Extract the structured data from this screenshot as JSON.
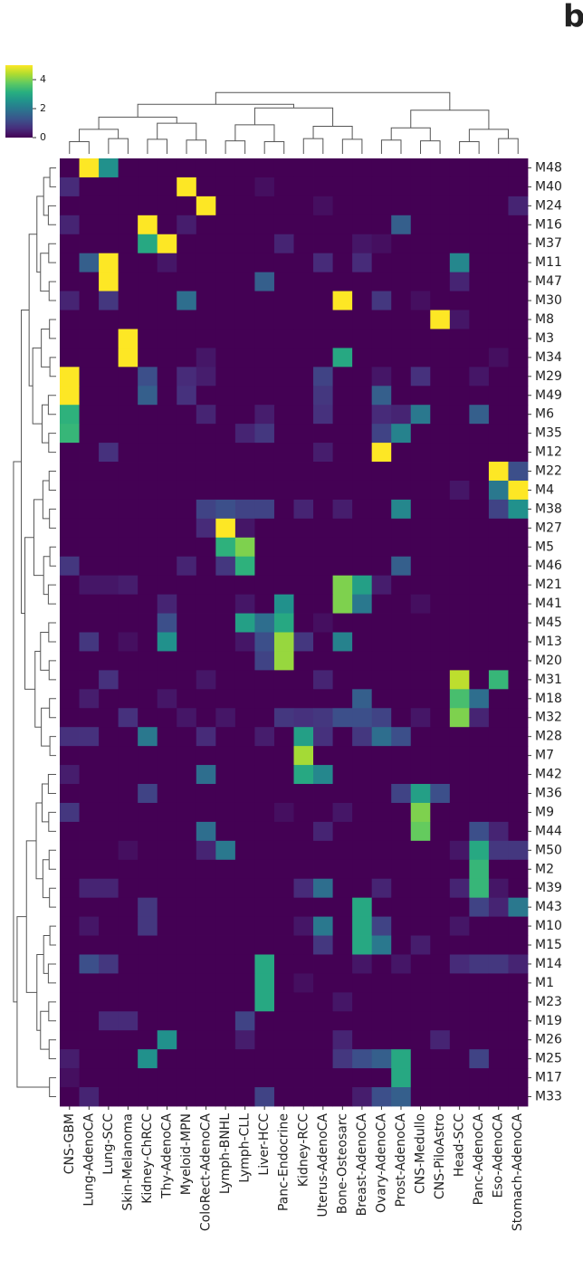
{
  "chart_data": {
    "type": "heatmap",
    "panel_label": "b",
    "colormap": "viridis",
    "clim": [
      0,
      5
    ],
    "cticks": [
      0,
      2,
      4
    ],
    "columns": [
      "CNS-GBM",
      "Lung-AdenoCA",
      "Lung-SCC",
      "Skin-Melanoma",
      "Kidney-ChRCC",
      "Thy-AdenoCA",
      "Myeloid-MPN",
      "ColoRect-AdenoCA",
      "Lymph-BNHL",
      "Lymph-CLL",
      "Liver-HCC",
      "Panc-Endocrine",
      "Kidney-RCC",
      "Uterus-AdenoCA",
      "Bone-Osteosarc",
      "Breast-AdenoCA",
      "Ovary-AdenoCA",
      "Prost-AdenoCA",
      "CNS-Medullo",
      "CNS-PiloAstro",
      "Head-SCC",
      "Panc-AdenoCA",
      "Eso-AdenoCA",
      "Stomach-AdenoCA"
    ],
    "rows": [
      "M48",
      "M40",
      "M24",
      "M16",
      "M37",
      "M11",
      "M47",
      "M30",
      "M8",
      "M3",
      "M34",
      "M29",
      "M49",
      "M6",
      "M35",
      "M12",
      "M22",
      "M4",
      "M38",
      "M27",
      "M5",
      "M46",
      "M21",
      "M41",
      "M45",
      "M13",
      "M20",
      "M31",
      "M18",
      "M32",
      "M28",
      "M7",
      "M42",
      "M36",
      "M9",
      "M44",
      "M50",
      "M2",
      "M39",
      "M43",
      "M10",
      "M15",
      "M14",
      "M1",
      "M23",
      "M19",
      "M26",
      "M25",
      "M17",
      "M33"
    ],
    "values": [
      [
        0,
        5,
        2.5,
        0,
        0,
        0,
        0,
        0,
        0,
        0,
        0,
        0,
        0,
        0,
        0,
        0,
        0,
        0,
        0,
        0,
        0,
        0,
        0,
        0
      ],
      [
        0.6,
        0,
        0,
        0,
        0,
        0,
        5,
        0,
        0,
        0,
        0.2,
        0,
        0,
        0,
        0,
        0,
        0,
        0,
        0,
        0,
        0,
        0,
        0,
        0
      ],
      [
        0,
        0,
        0,
        0,
        0,
        0,
        0,
        5,
        0,
        0,
        0,
        0,
        0,
        0.2,
        0,
        0,
        0,
        0,
        0,
        0,
        0,
        0,
        0,
        0.5
      ],
      [
        0.5,
        0,
        0,
        0,
        5,
        0,
        0.4,
        0,
        0,
        0,
        0,
        0,
        0,
        0,
        0,
        0,
        0,
        1.5,
        0,
        0,
        0,
        0,
        0,
        0
      ],
      [
        0,
        0,
        0,
        0,
        3,
        5,
        0,
        0,
        0,
        0,
        0,
        0.5,
        0,
        0,
        0,
        0.3,
        0.2,
        0,
        0,
        0,
        0,
        0,
        0,
        0
      ],
      [
        0,
        1.5,
        5,
        0,
        0,
        0.3,
        0,
        0,
        0,
        0,
        0,
        0,
        0,
        0.6,
        0,
        0.6,
        0,
        0,
        0,
        0,
        2.3,
        0,
        0,
        0
      ],
      [
        0,
        0,
        5,
        0,
        0,
        0,
        0,
        0,
        0,
        0,
        1.5,
        0,
        0,
        0,
        0,
        0,
        0,
        0,
        0,
        0,
        0.5,
        0,
        0,
        0
      ],
      [
        0.5,
        0,
        0.8,
        0,
        0,
        0,
        1.8,
        0,
        0,
        0,
        0,
        0,
        0,
        0,
        5,
        0,
        0.8,
        0,
        0.2,
        0,
        0,
        0,
        0,
        0
      ],
      [
        0,
        0,
        0,
        0,
        0,
        0,
        0,
        0,
        0,
        0,
        0,
        0,
        0,
        0,
        0,
        0,
        0,
        0,
        0,
        5,
        0.3,
        0,
        0,
        0
      ],
      [
        0,
        0,
        0,
        5,
        0,
        0,
        0,
        0,
        0,
        0,
        0,
        0,
        0,
        0,
        0,
        0,
        0,
        0,
        0,
        0,
        0,
        0,
        0,
        0
      ],
      [
        0,
        0,
        0,
        5,
        0,
        0,
        0,
        0.3,
        0,
        0,
        0,
        0,
        0,
        0,
        3,
        0,
        0,
        0,
        0,
        0,
        0,
        0,
        0.2,
        0
      ],
      [
        5,
        0,
        0,
        0,
        1.2,
        0,
        0.6,
        0.4,
        0,
        0,
        0,
        0,
        0,
        1,
        0,
        0,
        0.3,
        0,
        0.7,
        0,
        0,
        0.3,
        0,
        0
      ],
      [
        5,
        0,
        0,
        0,
        1.5,
        0,
        0.7,
        0,
        0,
        0,
        0,
        0,
        0,
        0.8,
        0,
        0,
        1.5,
        0,
        0,
        0,
        0,
        0,
        0,
        0
      ],
      [
        3.2,
        0,
        0,
        0,
        0,
        0,
        0,
        0.5,
        0,
        0,
        0.4,
        0,
        0,
        0.7,
        0,
        0,
        0.6,
        0.5,
        2,
        0,
        0,
        1.5,
        0,
        0
      ],
      [
        3.3,
        0,
        0,
        0,
        0,
        0,
        0,
        0,
        0,
        0.5,
        0.8,
        0,
        0,
        0,
        0,
        0,
        1,
        2.2,
        0,
        0,
        0,
        0,
        0,
        0
      ],
      [
        0,
        0,
        0.7,
        0,
        0,
        0,
        0,
        0,
        0,
        0,
        0,
        0,
        0,
        0.4,
        0,
        0,
        5,
        0,
        0,
        0,
        0,
        0,
        0,
        0
      ],
      [
        0,
        0,
        0,
        0,
        0,
        0,
        0,
        0,
        0,
        0,
        0,
        0,
        0,
        0,
        0,
        0,
        0,
        0,
        0,
        0,
        0,
        0,
        5,
        1.2
      ],
      [
        0,
        0,
        0,
        0,
        0,
        0,
        0,
        0,
        0,
        0,
        0,
        0,
        0,
        0,
        0,
        0,
        0,
        0,
        0,
        0,
        0.3,
        0,
        2,
        5
      ],
      [
        0,
        0,
        0,
        0,
        0,
        0,
        0,
        1,
        1.2,
        1,
        1,
        0,
        0.5,
        0,
        0.4,
        0,
        0,
        2.3,
        0,
        0,
        0,
        0,
        1,
        2.5
      ],
      [
        0,
        0,
        0,
        0,
        0,
        0,
        0,
        0.6,
        5,
        0.3,
        0,
        0,
        0,
        0,
        0,
        0,
        0,
        0,
        0,
        0,
        0,
        0,
        0,
        0
      ],
      [
        0,
        0,
        0,
        0,
        0,
        0,
        0,
        0,
        3.2,
        4,
        0,
        0,
        0,
        0,
        0,
        0,
        0,
        0,
        0,
        0,
        0,
        0,
        0,
        0
      ],
      [
        0.8,
        0,
        0,
        0,
        0,
        0,
        0.5,
        0,
        0.8,
        3.2,
        0,
        0,
        0,
        0,
        0,
        0,
        0,
        1.5,
        0,
        0,
        0,
        0,
        0,
        0
      ],
      [
        0,
        0.3,
        0.3,
        0.4,
        0,
        0,
        0,
        0,
        0,
        0,
        0,
        0,
        0,
        0,
        4,
        2.8,
        0.4,
        0,
        0,
        0,
        0,
        0,
        0,
        0
      ],
      [
        0,
        0,
        0,
        0,
        0,
        0.5,
        0,
        0,
        0,
        0.3,
        0,
        2.5,
        0,
        0,
        4,
        2,
        0,
        0,
        0.2,
        0,
        0,
        0,
        0,
        0
      ],
      [
        0,
        0,
        0,
        0,
        0,
        1.2,
        0,
        0,
        0,
        2.8,
        1.8,
        3,
        0,
        0.2,
        0,
        0,
        0,
        0,
        0,
        0,
        0,
        0,
        0,
        0
      ],
      [
        0,
        0.8,
        0,
        0.2,
        0,
        2.5,
        0,
        0,
        0,
        0.3,
        1.2,
        4.2,
        0.8,
        0,
        2.2,
        0,
        0,
        0,
        0,
        0,
        0,
        0,
        0,
        0
      ],
      [
        0,
        0,
        0,
        0,
        0,
        0,
        0,
        0,
        0,
        0,
        1,
        4.2,
        0,
        0,
        0,
        0,
        0,
        0,
        0,
        0,
        0,
        0,
        0,
        0
      ],
      [
        0,
        0,
        0.7,
        0,
        0,
        0,
        0,
        0.3,
        0,
        0,
        0,
        0,
        0,
        0.5,
        0,
        0,
        0,
        0,
        0,
        0,
        4.5,
        0,
        3.3,
        0
      ],
      [
        0,
        0.4,
        0,
        0,
        0,
        0.3,
        0,
        0,
        0,
        0,
        0,
        0,
        0,
        0,
        0,
        1.5,
        0,
        0,
        0,
        0,
        3.5,
        1.8,
        0,
        0
      ],
      [
        0,
        0,
        0,
        0.7,
        0,
        0,
        0.3,
        0,
        0.3,
        0,
        0,
        0.8,
        0.7,
        0.8,
        1.2,
        1.2,
        1,
        0,
        0.3,
        0,
        4,
        0.5,
        0,
        0
      ],
      [
        0.7,
        0.7,
        0,
        0,
        2,
        0,
        0,
        0.6,
        0,
        0,
        0.4,
        0,
        2.8,
        0.7,
        0,
        0.8,
        1.8,
        1.2,
        0,
        0,
        0,
        0,
        0,
        0
      ],
      [
        0,
        0,
        0,
        0,
        0,
        0,
        0,
        0,
        0,
        0,
        0,
        0,
        4.3,
        0,
        0,
        0,
        0,
        0,
        0,
        0,
        0,
        0,
        0,
        0
      ],
      [
        0.4,
        0,
        0,
        0,
        0,
        0,
        0,
        1.8,
        0,
        0,
        0,
        0,
        3,
        2.3,
        0,
        0,
        0,
        0,
        0,
        0,
        0,
        0,
        0,
        0
      ],
      [
        0,
        0,
        0,
        0,
        1,
        0,
        0,
        0,
        0,
        0,
        0,
        0,
        0,
        0,
        0,
        0,
        0,
        1,
        2.8,
        1.2,
        0,
        0,
        0,
        0
      ],
      [
        0.8,
        0,
        0,
        0,
        0,
        0,
        0,
        0,
        0,
        0,
        0,
        0.2,
        0,
        0,
        0.3,
        0,
        0,
        0,
        4,
        0,
        0,
        0,
        0,
        0
      ],
      [
        0,
        0,
        0,
        0,
        0,
        0,
        0,
        1.8,
        0,
        0,
        0,
        0,
        0,
        0.5,
        0,
        0,
        0,
        0,
        3.8,
        0,
        0,
        1.2,
        0.5,
        0
      ],
      [
        0,
        0,
        0,
        0.2,
        0,
        0,
        0,
        0.5,
        2,
        0,
        0,
        0,
        0,
        0,
        0,
        0,
        0,
        0,
        0,
        0,
        0.3,
        3,
        0.8,
        0.8
      ],
      [
        0,
        0,
        0,
        0,
        0,
        0,
        0,
        0,
        0,
        0,
        0,
        0,
        0,
        0,
        0,
        0,
        0,
        0,
        0,
        0,
        0,
        3.3,
        0,
        0
      ],
      [
        0,
        0.5,
        0.5,
        0,
        0,
        0,
        0,
        0,
        0,
        0,
        0,
        0,
        0.6,
        1.8,
        0,
        0,
        0.5,
        0,
        0,
        0,
        0.5,
        3.3,
        0.3,
        0
      ],
      [
        0,
        0,
        0,
        0,
        0.8,
        0,
        0,
        0,
        0,
        0,
        0,
        0,
        0,
        0,
        0,
        3,
        0,
        0,
        0,
        0,
        0,
        1,
        0.5,
        2
      ],
      [
        0,
        0.3,
        0,
        0,
        0.8,
        0,
        0,
        0,
        0,
        0,
        0,
        0,
        0.3,
        2,
        0,
        3,
        1,
        0,
        0,
        0,
        0.3,
        0,
        0,
        0
      ],
      [
        0,
        0,
        0,
        0,
        0,
        0,
        0,
        0,
        0,
        0,
        0,
        0,
        0,
        0.8,
        0,
        3,
        2,
        0,
        0.4,
        0,
        0,
        0,
        0,
        0
      ],
      [
        0,
        1.2,
        0.8,
        0,
        0,
        0,
        0,
        0,
        0,
        0,
        3,
        0,
        0,
        0,
        0,
        0.3,
        0,
        0.3,
        0,
        0,
        0.6,
        0.8,
        0.8,
        0.5
      ],
      [
        0,
        0,
        0,
        0,
        0,
        0,
        0,
        0,
        0,
        0,
        3,
        0,
        0.2,
        0,
        0,
        0,
        0,
        0,
        0,
        0,
        0,
        0,
        0,
        0
      ],
      [
        0,
        0,
        0,
        0,
        0,
        0,
        0,
        0,
        0,
        0,
        3,
        0,
        0,
        0,
        0.3,
        0,
        0,
        0,
        0,
        0,
        0,
        0,
        0,
        0
      ],
      [
        0,
        0,
        0.6,
        0.6,
        0,
        0,
        0,
        0,
        0,
        1,
        0,
        0,
        0,
        0,
        0,
        0,
        0,
        0,
        0,
        0,
        0,
        0,
        0,
        0
      ],
      [
        0,
        0,
        0,
        0,
        0,
        2.5,
        0,
        0,
        0,
        0.4,
        0,
        0,
        0,
        0,
        0.5,
        0,
        0,
        0,
        0,
        0.5,
        0,
        0,
        0,
        0
      ],
      [
        0.4,
        0,
        0,
        0,
        2.5,
        0,
        0,
        0,
        0,
        0,
        0,
        0,
        0,
        0,
        0.8,
        1.2,
        1.5,
        3,
        0,
        0,
        0,
        1,
        0,
        0
      ],
      [
        0.2,
        0,
        0,
        0,
        0,
        0,
        0,
        0,
        0,
        0,
        0,
        0,
        0,
        0,
        0,
        0,
        0,
        3,
        0,
        0,
        0,
        0,
        0,
        0
      ],
      [
        0,
        0.5,
        0,
        0,
        0,
        0,
        0,
        0,
        0,
        0,
        1,
        0,
        0,
        0,
        0,
        0.4,
        1.2,
        1.5,
        0,
        0,
        0,
        0,
        0,
        0
      ]
    ]
  }
}
